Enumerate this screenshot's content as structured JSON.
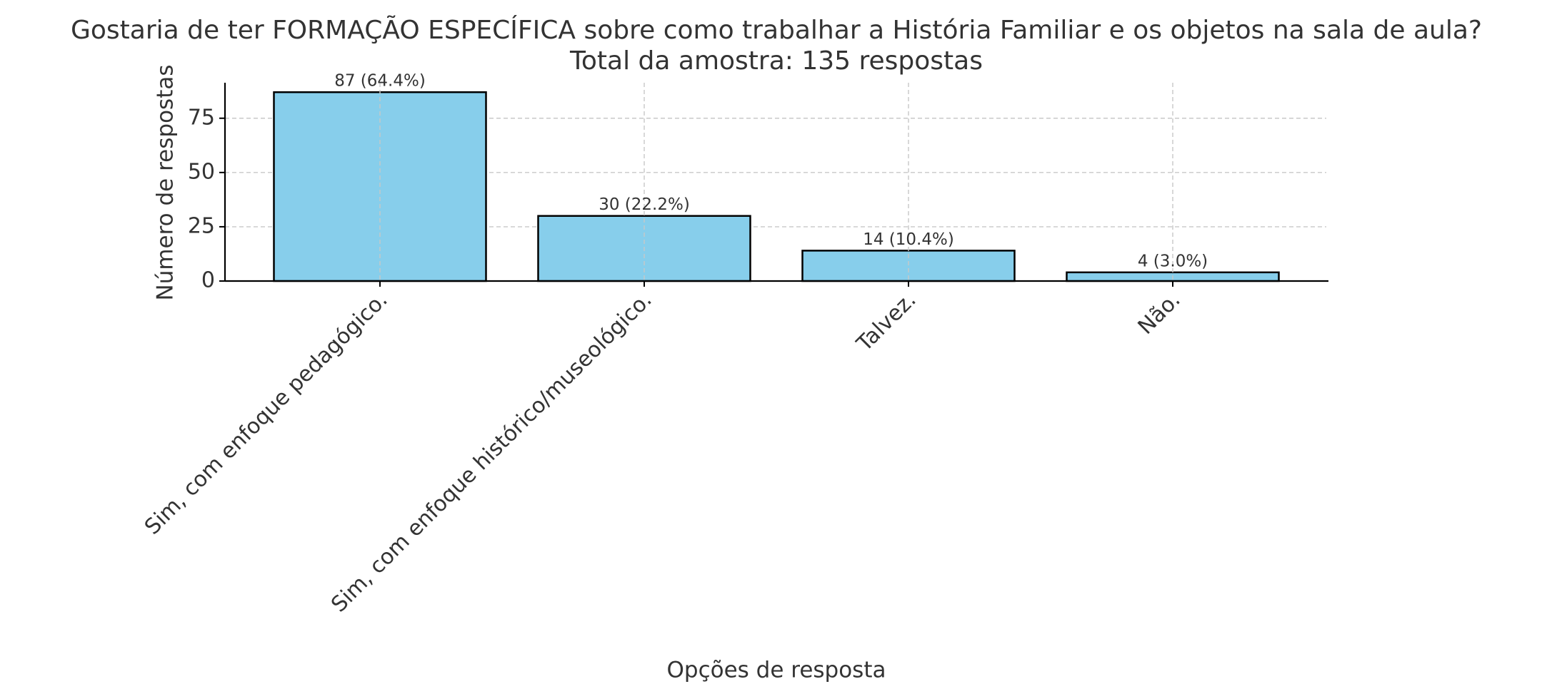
{
  "chart_data": {
    "type": "bar",
    "title": "Gostaria de ter FORMAÇÃO ESPECÍFICA sobre como trabalhar a História Familiar e os objetos na sala de aula?",
    "subtitle": "Total da amostra: 135 respostas",
    "x_label": "Opções de resposta",
    "y_label": "Número de respostas",
    "categories": [
      "Sim, com enfoque pedagógico.",
      "Sim, com enfoque histórico/museológico.",
      "Talvez.",
      "Não."
    ],
    "values": [
      87,
      30,
      14,
      4
    ],
    "value_labels": [
      "87 (64.4%)",
      "30 (22.2%)",
      "14 (10.4%)",
      "4 (3.0%)"
    ],
    "color": "#87ceeb",
    "ylim": [
      0,
      91.35
    ],
    "yticks": [
      0,
      25,
      50,
      75
    ],
    "grid": true
  }
}
